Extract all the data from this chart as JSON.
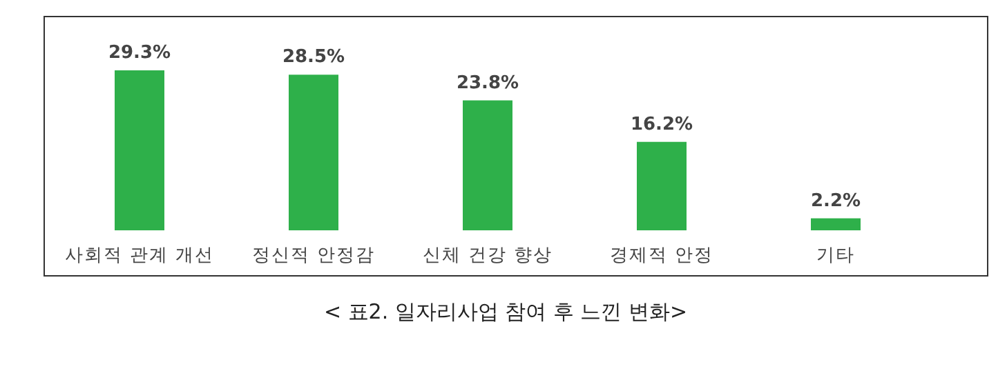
{
  "chart_data": {
    "type": "bar",
    "categories": [
      "사회적 관계 개선",
      "정신적 안정감",
      "신체 건강 향상",
      "경제적 안정",
      "기타"
    ],
    "values": [
      29.3,
      28.5,
      23.8,
      16.2,
      2.2
    ],
    "value_labels": [
      "29.3%",
      "28.5%",
      "23.8%",
      "16.2%",
      "2.2%"
    ],
    "color": "#2eb04a",
    "annotations": [
      "< 표2. 일자리사업 참여 후 느낀 변화>"
    ]
  }
}
